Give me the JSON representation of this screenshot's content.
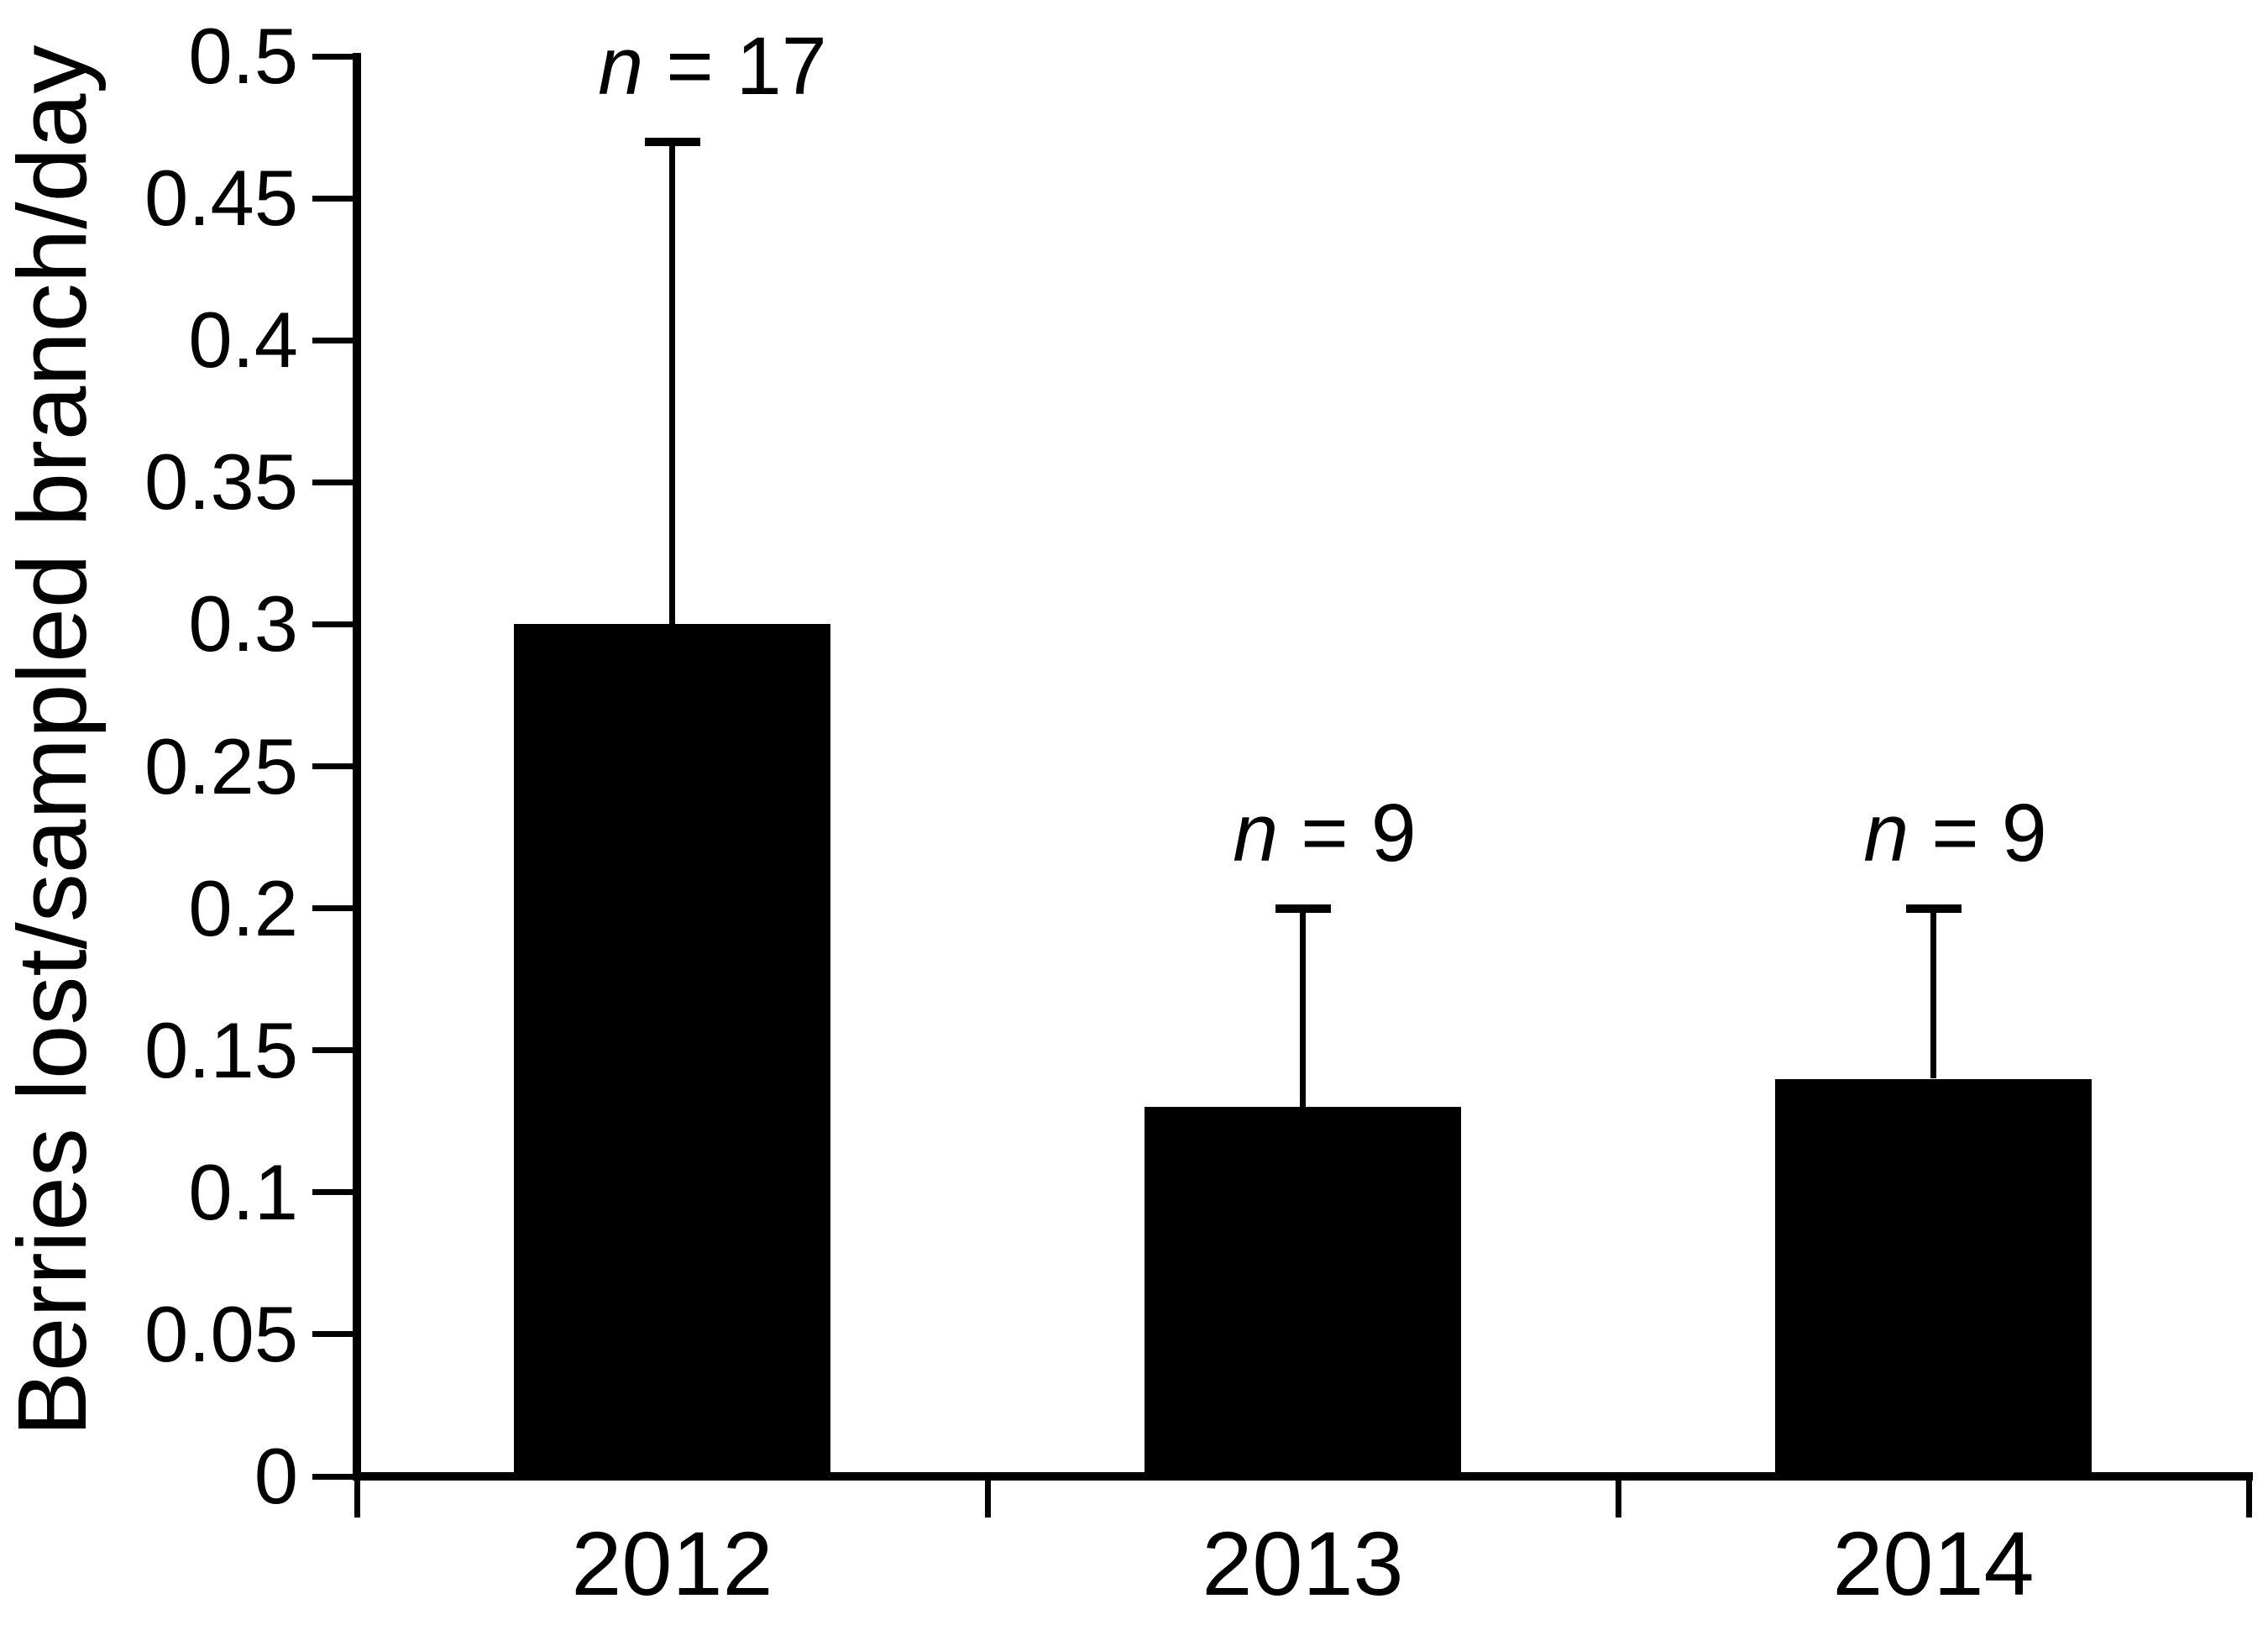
{
  "figure": {
    "background_color": "#ffffff",
    "ink_color": "#000000"
  },
  "chart_data": {
    "type": "bar",
    "title": "",
    "ylabel": "Berries lost/sampled branch/day",
    "xlabel": "",
    "categories": [
      "2012",
      "2013",
      "2014"
    ],
    "values": [
      0.3,
      0.13,
      0.14
    ],
    "error_plus": [
      0.17,
      0.07,
      0.06
    ],
    "error_tops": [
      0.47,
      0.2,
      0.2
    ],
    "annotations": [
      "n = 17",
      "n = 9",
      "n = 9"
    ],
    "ylim": [
      0,
      0.5
    ],
    "yticks": [
      0,
      0.05,
      0.1,
      0.15,
      0.2,
      0.25,
      0.3,
      0.35,
      0.4,
      0.45,
      0.5
    ],
    "ytick_labels": [
      "0",
      "0.05",
      "0.1",
      "0.15",
      "0.2",
      "0.25",
      "0.3",
      "0.35",
      "0.4",
      "0.45",
      "0.5"
    ],
    "bar_color": "#000000",
    "grid": false,
    "legend": null
  }
}
